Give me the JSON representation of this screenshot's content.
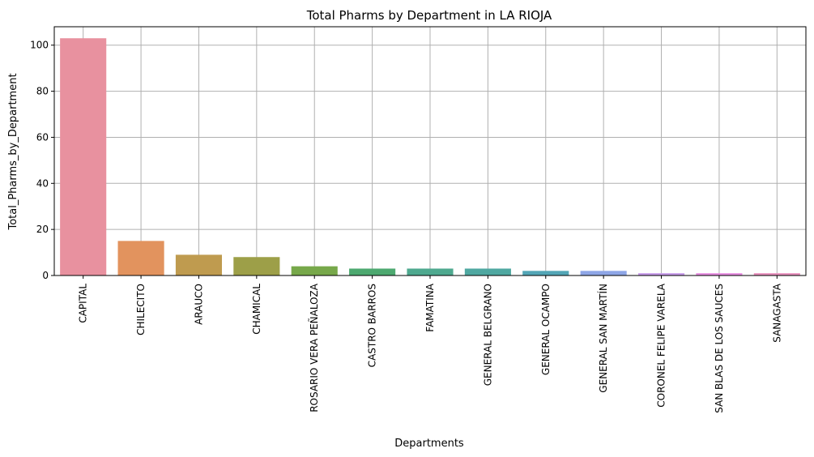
{
  "chart_data": {
    "type": "bar",
    "title": "Total Pharms by Department in LA RIOJA",
    "xlabel": "Departments",
    "ylabel": "Total_Pharms_by_Department",
    "categories": [
      "CAPITAL",
      "CHILECITO",
      "ARAUCO",
      "CHAMICAL",
      "ROSARIO VERA PEÑALOZA",
      "CASTRO BARROS",
      "FAMATINA",
      "GENERAL BELGRANO",
      "GENERAL OCAMPO",
      "GENERAL SAN MARTÍN",
      "CORONEL FELIPE VARELA",
      "SAN BLAS DE LOS SAUCES",
      "SANAGASTA"
    ],
    "values": [
      103,
      15,
      9,
      8,
      4,
      3,
      3,
      3,
      2,
      2,
      1,
      1,
      1
    ],
    "colors": [
      "#e8919f",
      "#e2935e",
      "#bf9b4f",
      "#9d9f48",
      "#77a84a",
      "#4da970",
      "#4ea98f",
      "#4fa8a1",
      "#53a6b6",
      "#8ea6e6",
      "#c79bea",
      "#e78ce0",
      "#e88fbd"
    ],
    "ylim": [
      0,
      108
    ],
    "yticks": [
      0,
      20,
      40,
      60,
      80,
      100
    ],
    "grid": true,
    "legend": "none"
  }
}
